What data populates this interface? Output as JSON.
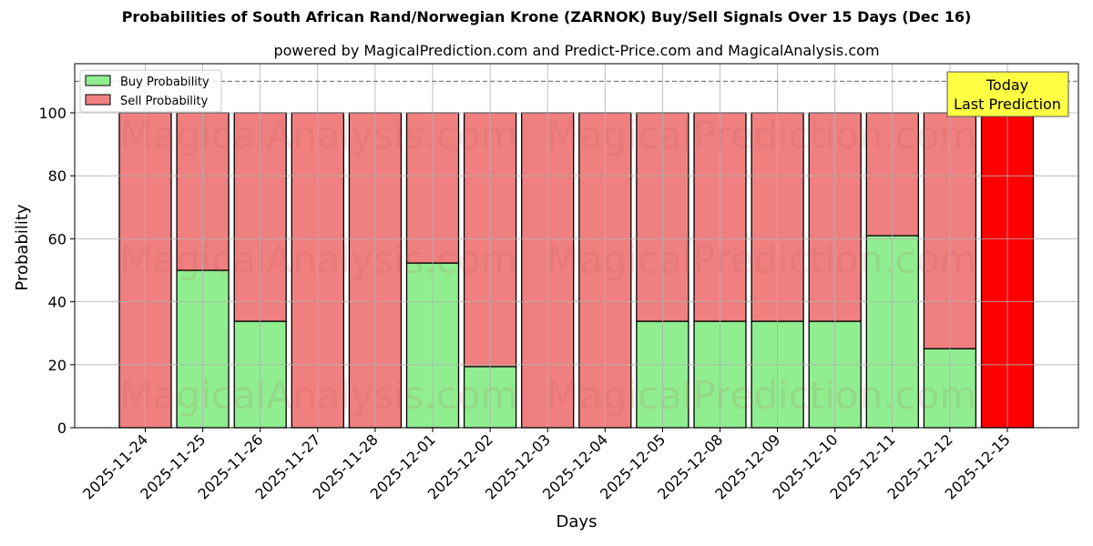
{
  "chart": {
    "title": "Probabilities of South African Rand/Norwegian Krone (ZARNOK) Buy/Sell Signals Over 15 Days (Dec 16)",
    "subtitle": "powered by MagicalPrediction.com and Predict-Price.com and MagicalAnalysis.com",
    "xlabel": "Days",
    "ylabel": "Probability",
    "legend": [
      "Buy Probability",
      "Sell Probability"
    ],
    "annotation": [
      "Today",
      "Last Prediction"
    ],
    "watermarks": [
      "MagicalAnalysis.com",
      "MagicalPrediction.com"
    ],
    "yticks": [
      "0",
      "20",
      "40",
      "60",
      "80",
      "100"
    ]
  },
  "chart_data": {
    "type": "bar",
    "stacked": true,
    "title": "Probabilities of South African Rand/Norwegian Krone (ZARNOK) Buy/Sell Signals Over 15 Days (Dec 16)",
    "subtitle": "powered by MagicalPrediction.com and Predict-Price.com and MagicalAnalysis.com",
    "xlabel": "Days",
    "ylabel": "Probability",
    "ylim": [
      0,
      115
    ],
    "yticks": [
      0,
      20,
      40,
      60,
      80,
      100
    ],
    "grid": true,
    "legend_position": "upper left",
    "reference_line": {
      "y": 110,
      "style": "dashed",
      "color": "#808080"
    },
    "annotation": {
      "text": "Today\nLast Prediction",
      "x": "2025-12-15",
      "background": "#ffff44"
    },
    "categories": [
      "2025-11-24",
      "2025-11-25",
      "2025-11-26",
      "2025-11-27",
      "2025-11-28",
      "2025-12-01",
      "2025-12-02",
      "2025-12-03",
      "2025-12-04",
      "2025-12-05",
      "2025-12-08",
      "2025-12-09",
      "2025-12-10",
      "2025-12-11",
      "2025-12-12",
      "2025-12-15"
    ],
    "series": [
      {
        "name": "Buy Probability",
        "color": "#90ee90",
        "values": [
          0,
          50,
          33.8,
          0,
          0,
          52.3,
          19.4,
          0,
          0,
          33.8,
          33.8,
          33.8,
          33.8,
          61,
          25.1,
          0
        ]
      },
      {
        "name": "Sell Probability",
        "color": "#f08080",
        "values": [
          100,
          50,
          66.2,
          100,
          100,
          47.7,
          80.6,
          100,
          100,
          66.2,
          66.2,
          66.2,
          66.2,
          39,
          74.9,
          100
        ]
      }
    ],
    "highlight": {
      "category": "2025-12-15",
      "color": "#ff0000"
    }
  }
}
